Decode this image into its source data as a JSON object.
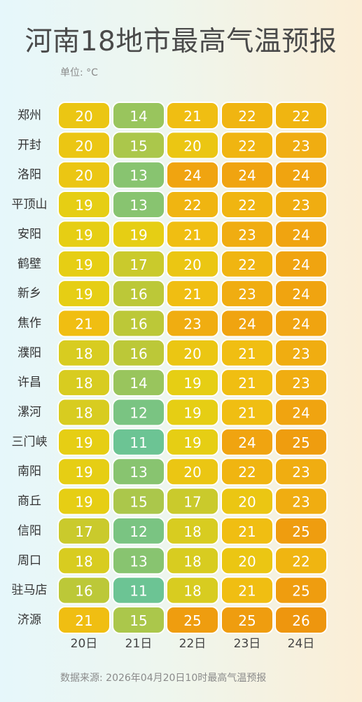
{
  "header": {
    "title": "河南18地市最高气温预报",
    "unit": "单位: °C"
  },
  "footer": {
    "source": "数据来源: 2026年04月20日10时最高气温预报"
  },
  "chart_data": {
    "type": "heatmap",
    "title": "河南18地市最高气温预报",
    "unit": "°C",
    "days": [
      "20日",
      "21日",
      "22日",
      "23日",
      "24日"
    ],
    "cities": [
      "郑州",
      "开封",
      "洛阳",
      "平顶山",
      "安阳",
      "鹤壁",
      "新乡",
      "焦作",
      "濮阳",
      "许昌",
      "漯河",
      "三门峡",
      "南阳",
      "商丘",
      "信阳",
      "周口",
      "驻马店",
      "济源"
    ],
    "values": [
      [
        20,
        14,
        21,
        22,
        22
      ],
      [
        20,
        15,
        20,
        22,
        23
      ],
      [
        20,
        13,
        24,
        24,
        24
      ],
      [
        19,
        13,
        22,
        22,
        23
      ],
      [
        19,
        19,
        21,
        23,
        24
      ],
      [
        19,
        17,
        20,
        22,
        24
      ],
      [
        19,
        16,
        21,
        23,
        24
      ],
      [
        21,
        16,
        23,
        24,
        24
      ],
      [
        18,
        16,
        20,
        21,
        23
      ],
      [
        18,
        14,
        19,
        21,
        23
      ],
      [
        18,
        12,
        19,
        21,
        24
      ],
      [
        19,
        11,
        19,
        24,
        25
      ],
      [
        19,
        13,
        20,
        22,
        23
      ],
      [
        19,
        15,
        17,
        20,
        23
      ],
      [
        17,
        12,
        18,
        21,
        25
      ],
      [
        18,
        13,
        18,
        20,
        22
      ],
      [
        16,
        11,
        18,
        21,
        25
      ],
      [
        21,
        15,
        25,
        25,
        26
      ]
    ],
    "color_scale": [
      "#6dc494",
      "#f09a12"
    ]
  }
}
